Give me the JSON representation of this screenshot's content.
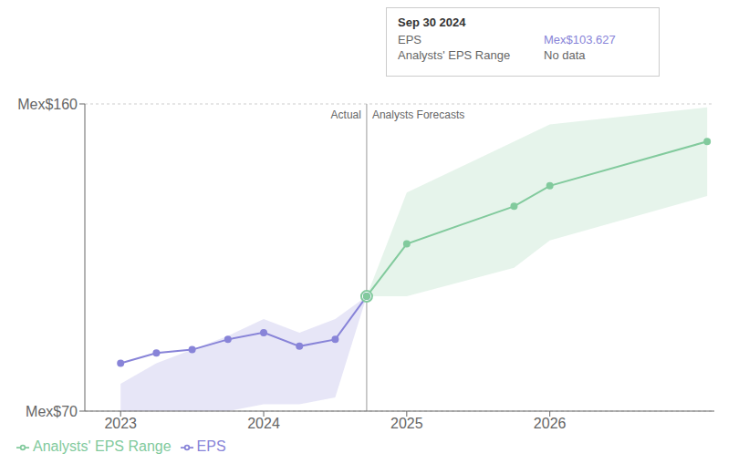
{
  "chart_data": {
    "type": "line",
    "xlim": [
      2022.75,
      2027.15
    ],
    "xticks": [
      2023,
      2024,
      2025,
      2026
    ],
    "ylim": [
      70,
      160
    ],
    "yticks": [
      {
        "value": 70,
        "label": "Mex$70"
      },
      {
        "value": 160,
        "label": "Mex$160"
      }
    ],
    "grid": true,
    "legend": "lower left",
    "series": [
      {
        "name": "EPS",
        "marker": "circle",
        "x": [
          2023.0,
          2023.25,
          2023.5,
          2023.75,
          2024.0,
          2024.25,
          2024.5,
          2024.72
        ],
        "values": [
          84,
          87,
          88,
          91,
          93,
          89,
          91,
          103.627
        ],
        "lower": [
          70,
          70,
          70,
          70,
          72,
          72,
          74,
          103.627
        ],
        "upper": [
          78,
          84,
          88,
          92,
          97,
          93,
          97,
          103.627
        ]
      },
      {
        "name": "Analysts' EPS Range",
        "marker": "circle",
        "x": [
          2024.72,
          2025.0,
          2025.75,
          2026.0,
          2027.1
        ],
        "values": [
          103.627,
          119,
          130,
          136,
          149
        ],
        "lower": [
          103.627,
          103.627,
          112,
          120,
          133
        ],
        "upper": [
          103.627,
          134,
          149,
          154,
          159
        ]
      }
    ],
    "divider": {
      "x": 2024.72,
      "labels": [
        "Actual",
        "Analysts Forecasts"
      ]
    },
    "tooltip": {
      "title": "Sep 30 2024",
      "x": 2024.72,
      "rows": [
        {
          "label": "EPS",
          "value": 103.627,
          "value_label": "Mex$103.627"
        },
        {
          "label": "Analysts' EPS Range",
          "value_label": "No data"
        }
      ]
    }
  }
}
